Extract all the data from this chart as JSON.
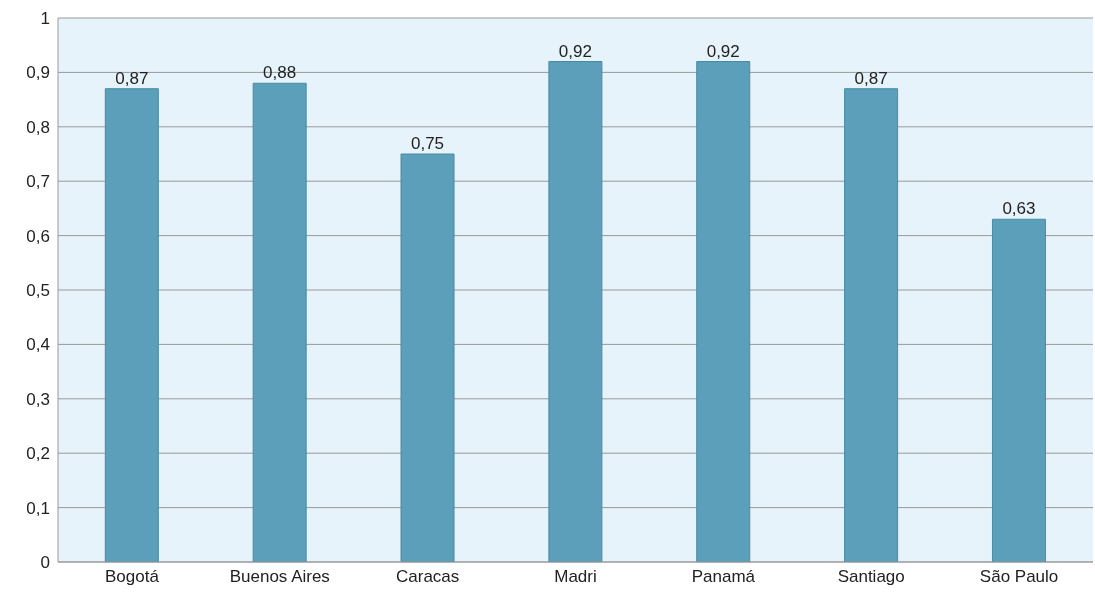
{
  "chart_data": {
    "type": "bar",
    "categories": [
      "Bogotá",
      "Buenos Aires",
      "Caracas",
      "Madri",
      "Panamá",
      "Santiago",
      "São Paulo"
    ],
    "values": [
      0.87,
      0.88,
      0.75,
      0.92,
      0.92,
      0.87,
      0.63
    ],
    "value_labels": [
      "0,87",
      "0,88",
      "0,75",
      "0,92",
      "0,92",
      "0,87",
      "0,63"
    ],
    "color": "#5b9fba",
    "ylim": [
      0,
      1
    ],
    "yticks": [
      0,
      {
        "value": 0.1,
        "label": "0,1"
      },
      {
        "value": 0.2,
        "label": "0,2"
      },
      {
        "value": 0.3,
        "label": "0,3"
      },
      {
        "value": 0.4,
        "label": "0,4"
      },
      {
        "value": 0.5,
        "label": "0,5"
      },
      {
        "value": 0.6,
        "label": "0,6"
      },
      {
        "value": 0.7,
        "label": "0,7"
      },
      {
        "value": 0.8,
        "label": "0,8"
      },
      {
        "value": 0.9,
        "label": "0,9"
      },
      1
    ],
    "grid": "y",
    "legend": false
  }
}
